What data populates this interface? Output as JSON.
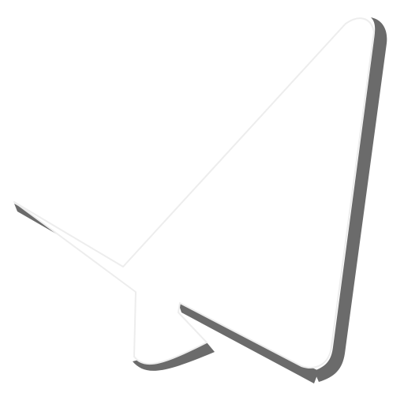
{
  "icon": {
    "name": "paper-plane-icon",
    "colors": {
      "background": "#ffffff",
      "fill": "#ffffff",
      "shadow": "#6b6b6b"
    }
  }
}
